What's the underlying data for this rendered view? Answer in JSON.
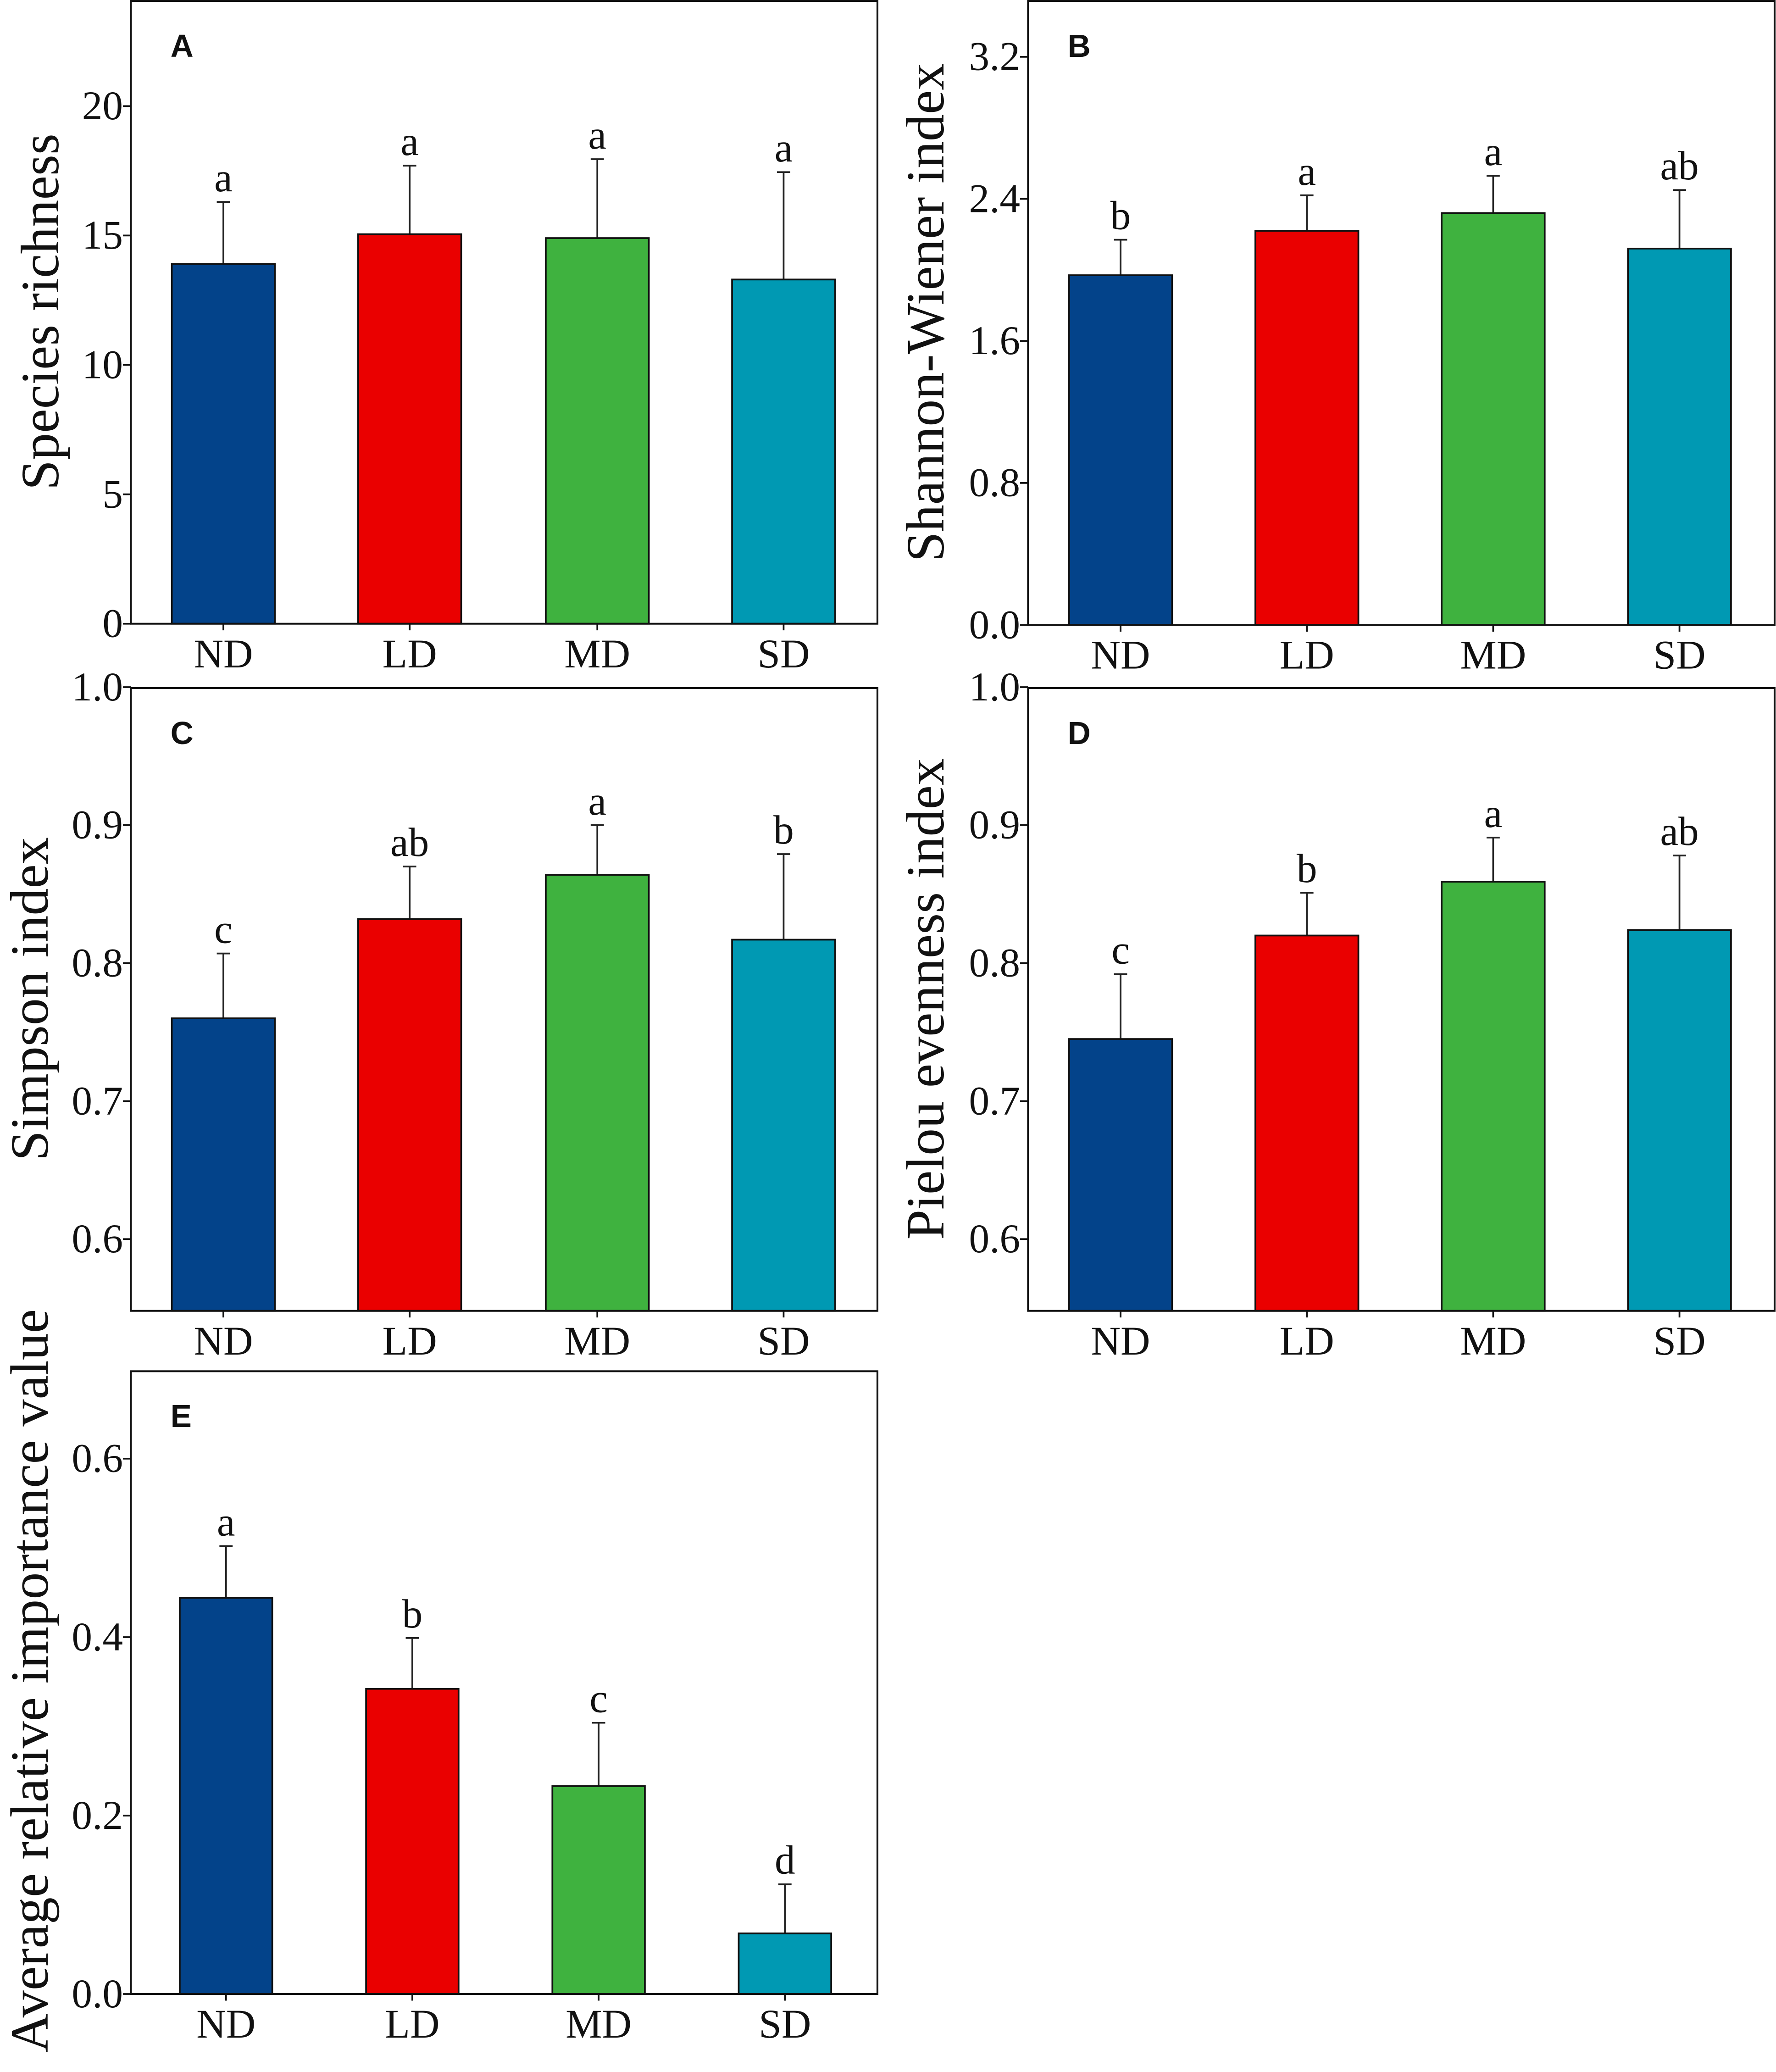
{
  "chart_data": [
    {
      "type": "bar",
      "panel": "A",
      "categories": [
        "ND",
        "LD",
        "MD",
        "SD"
      ],
      "values": [
        13.9,
        15.05,
        14.9,
        13.3
      ],
      "error_upper": [
        16.3,
        17.7,
        17.95,
        17.45
      ],
      "significance": [
        "a",
        "a",
        "a",
        "a"
      ],
      "ylabel": "Species richness",
      "xlabel": "",
      "ylim": [
        0,
        24.1
      ],
      "yticks": [
        0,
        5,
        10,
        15,
        20
      ],
      "ytick_labels": [
        "0",
        "5",
        "10",
        "15",
        "20"
      ]
    },
    {
      "type": "bar",
      "panel": "B",
      "categories": [
        "ND",
        "LD",
        "MD",
        "SD"
      ],
      "values": [
        1.97,
        2.22,
        2.32,
        2.12
      ],
      "error_upper": [
        2.17,
        2.42,
        2.53,
        2.45
      ],
      "significance": [
        "b",
        "a",
        "a",
        "ab"
      ],
      "ylabel": "Shannon-Wiener index",
      "xlabel": "",
      "ylim": [
        0,
        3.52
      ],
      "yticks": [
        0,
        0.8,
        1.6,
        2.4,
        3.2
      ],
      "ytick_labels": [
        "0.0",
        "0.8",
        "1.6",
        "2.4",
        "3.2"
      ]
    },
    {
      "type": "bar",
      "panel": "C",
      "categories": [
        "ND",
        "LD",
        "MD",
        "SD"
      ],
      "values": [
        0.76,
        0.832,
        0.864,
        0.817
      ],
      "error_upper": [
        0.807,
        0.87,
        0.9,
        0.879
      ],
      "significance": [
        "c",
        "ab",
        "a",
        "b"
      ],
      "ylabel": "Simpson index",
      "xlabel": "",
      "ylim": [
        0.548,
        1.0
      ],
      "yticks": [
        0.6,
        0.7,
        0.8,
        0.9,
        1.0
      ],
      "ytick_labels": [
        "0.6",
        "0.7",
        "0.8",
        "0.9",
        "1.0"
      ]
    },
    {
      "type": "bar",
      "panel": "D",
      "categories": [
        "ND",
        "LD",
        "MD",
        "SD"
      ],
      "values": [
        0.745,
        0.82,
        0.859,
        0.824
      ],
      "error_upper": [
        0.792,
        0.851,
        0.891,
        0.878
      ],
      "significance": [
        "c",
        "b",
        "a",
        "ab"
      ],
      "ylabel": "Pielou evenness index",
      "xlabel": "",
      "ylim": [
        0.548,
        1.0
      ],
      "yticks": [
        0.6,
        0.7,
        0.8,
        0.9,
        1.0
      ],
      "ytick_labels": [
        "0.6",
        "0.7",
        "0.8",
        "0.9",
        "1.0"
      ]
    },
    {
      "type": "bar",
      "panel": "E",
      "categories": [
        "ND",
        "LD",
        "MD",
        "SD"
      ],
      "values": [
        0.444,
        0.342,
        0.233,
        0.068
      ],
      "error_upper": [
        0.502,
        0.399,
        0.304,
        0.123
      ],
      "significance": [
        "a",
        "b",
        "c",
        "d"
      ],
      "ylabel": "Average relative importance value",
      "xlabel": "",
      "ylim": [
        0,
        0.699
      ],
      "yticks": [
        0,
        0.2,
        0.4,
        0.6
      ],
      "ytick_labels": [
        "0.0",
        "0.2",
        "0.4",
        "0.6"
      ]
    }
  ],
  "colors": {
    "ND": "#03438a",
    "LD": "#ea0000",
    "MD": "#3fb23f",
    "SD": "#0099b3"
  }
}
